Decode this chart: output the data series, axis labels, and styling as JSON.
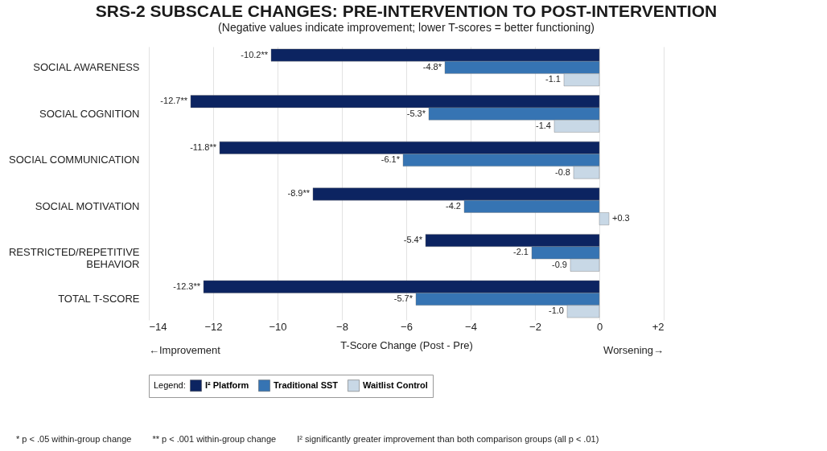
{
  "chart_data": {
    "type": "bar",
    "orientation": "horizontal",
    "title": "SRS-2 SUBSCALE CHANGES: PRE-INTERVENTION TO POST-INTERVENTION",
    "subtitle": "(Negative values indicate improvement; lower T-scores = better functioning)",
    "xlabel": "T-Score Change (Post - Pre)",
    "legend_title": "Legend:",
    "categories": [
      "SOCIAL AWARENESS",
      "SOCIAL COGNITION",
      "SOCIAL COMMUNICATION",
      "SOCIAL MOTIVATION",
      "RESTRICTED/REPETITIVE BEHAVIOR",
      "TOTAL T-SCORE"
    ],
    "series": [
      {
        "name": "I² Platform",
        "color": "#0c2461",
        "values": [
          -10.2,
          -12.7,
          -11.8,
          -8.9,
          -5.4,
          -12.3
        ],
        "value_labels": [
          "-10.2**",
          "-12.7**",
          "-11.8**",
          "-8.9**",
          "-5.4*",
          "-12.3**"
        ]
      },
      {
        "name": "Traditional SST",
        "color": "#3674b3",
        "values": [
          -4.8,
          -5.3,
          -6.1,
          -4.2,
          -2.1,
          -5.7
        ],
        "value_labels": [
          "-4.8*",
          "-5.3*",
          "-6.1*",
          "-4.2",
          "-2.1",
          "-5.7*"
        ]
      },
      {
        "name": "Waitlist Control",
        "color": "#c8d8e6",
        "values": [
          -1.1,
          -1.4,
          -0.8,
          0.3,
          -0.9,
          -1.0
        ],
        "value_labels": [
          "-1.1",
          "-1.4",
          "-0.8",
          "+0.3",
          "-0.9",
          "-1.0"
        ]
      }
    ],
    "xlim": [
      -14,
      2
    ],
    "xticks": [
      -14,
      -12,
      -10,
      -8,
      -6,
      -4,
      -2,
      0,
      {
        "value": 2,
        "label": "+2"
      }
    ],
    "grid": "x",
    "legend": "bottom",
    "annotations": [
      "←Improvement",
      "Worsening→",
      "* p < .05 within-group change",
      "** p < .001 within-group change",
      "I² significantly greater improvement than both comparison groups (all p < .01)"
    ]
  }
}
